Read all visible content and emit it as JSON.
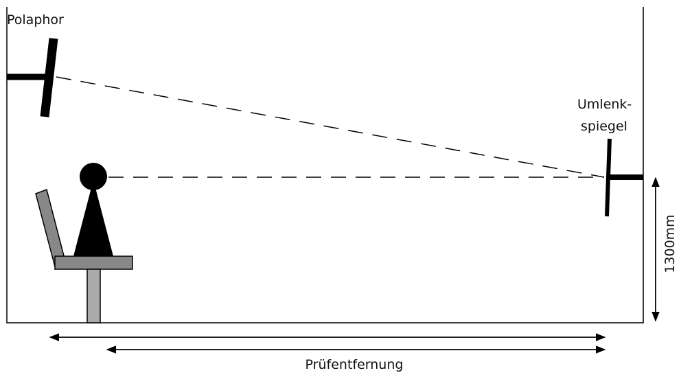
{
  "labels": {
    "source": "Polaphor",
    "mirror_line1": "Umlenk-",
    "mirror_line2": "spiegel",
    "height": "1300mm",
    "distance": "Prüfentfernung"
  }
}
